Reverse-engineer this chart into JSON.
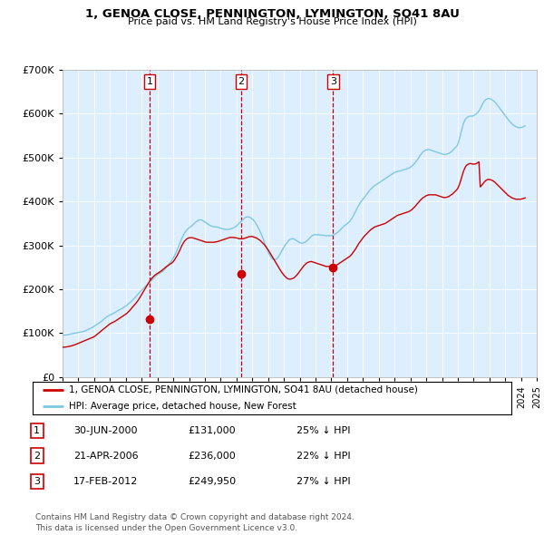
{
  "title": "1, GENOA CLOSE, PENNINGTON, LYMINGTON, SO41 8AU",
  "subtitle": "Price paid vs. HM Land Registry's House Price Index (HPI)",
  "hpi_label": "HPI: Average price, detached house, New Forest",
  "price_label": "1, GENOA CLOSE, PENNINGTON, LYMINGTON, SO41 8AU (detached house)",
  "hpi_color": "#7ec8e3",
  "price_color": "#cc0000",
  "vline_color": "#cc0000",
  "chart_bg_color": "#ddeeff",
  "background_color": "#ffffff",
  "grid_color": "#ffffff",
  "ylim": [
    0,
    700000
  ],
  "yticks": [
    0,
    100000,
    200000,
    300000,
    400000,
    500000,
    600000,
    700000
  ],
  "transactions": [
    {
      "num": 1,
      "date_label": "30-JUN-2000",
      "price_label": "£131,000",
      "pct_label": "25% ↓ HPI",
      "year": 2000.5,
      "price_val": 131000
    },
    {
      "num": 2,
      "date_label": "21-APR-2006",
      "price_label": "£236,000",
      "pct_label": "22% ↓ HPI",
      "year": 2006.3,
      "price_val": 236000
    },
    {
      "num": 3,
      "date_label": "17-FEB-2012",
      "price_label": "£249,950",
      "pct_label": "27% ↓ HPI",
      "year": 2012.1,
      "price_val": 249950
    }
  ],
  "footer": "Contains HM Land Registry data © Crown copyright and database right 2024.\nThis data is licensed under the Open Government Licence v3.0.",
  "hpi_data_x": [
    1995.0,
    1995.083,
    1995.167,
    1995.25,
    1995.333,
    1995.417,
    1995.5,
    1995.583,
    1995.667,
    1995.75,
    1995.833,
    1995.917,
    1996.0,
    1996.083,
    1996.167,
    1996.25,
    1996.333,
    1996.417,
    1996.5,
    1996.583,
    1996.667,
    1996.75,
    1996.833,
    1996.917,
    1997.0,
    1997.083,
    1997.167,
    1997.25,
    1997.333,
    1997.417,
    1997.5,
    1997.583,
    1997.667,
    1997.75,
    1997.833,
    1997.917,
    1998.0,
    1998.083,
    1998.167,
    1998.25,
    1998.333,
    1998.417,
    1998.5,
    1998.583,
    1998.667,
    1998.75,
    1998.833,
    1998.917,
    1999.0,
    1999.083,
    1999.167,
    1999.25,
    1999.333,
    1999.417,
    1999.5,
    1999.583,
    1999.667,
    1999.75,
    1999.833,
    1999.917,
    2000.0,
    2000.083,
    2000.167,
    2000.25,
    2000.333,
    2000.417,
    2000.5,
    2000.583,
    2000.667,
    2000.75,
    2000.833,
    2000.917,
    2001.0,
    2001.083,
    2001.167,
    2001.25,
    2001.333,
    2001.417,
    2001.5,
    2001.583,
    2001.667,
    2001.75,
    2001.833,
    2001.917,
    2002.0,
    2002.083,
    2002.167,
    2002.25,
    2002.333,
    2002.417,
    2002.5,
    2002.583,
    2002.667,
    2002.75,
    2002.833,
    2002.917,
    2003.0,
    2003.083,
    2003.167,
    2003.25,
    2003.333,
    2003.417,
    2003.5,
    2003.583,
    2003.667,
    2003.75,
    2003.833,
    2003.917,
    2004.0,
    2004.083,
    2004.167,
    2004.25,
    2004.333,
    2004.417,
    2004.5,
    2004.583,
    2004.667,
    2004.75,
    2004.833,
    2004.917,
    2005.0,
    2005.083,
    2005.167,
    2005.25,
    2005.333,
    2005.417,
    2005.5,
    2005.583,
    2005.667,
    2005.75,
    2005.833,
    2005.917,
    2006.0,
    2006.083,
    2006.167,
    2006.25,
    2006.333,
    2006.417,
    2006.5,
    2006.583,
    2006.667,
    2006.75,
    2006.833,
    2006.917,
    2007.0,
    2007.083,
    2007.167,
    2007.25,
    2007.333,
    2007.417,
    2007.5,
    2007.583,
    2007.667,
    2007.75,
    2007.833,
    2007.917,
    2008.0,
    2008.083,
    2008.167,
    2008.25,
    2008.333,
    2008.417,
    2008.5,
    2008.583,
    2008.667,
    2008.75,
    2008.833,
    2008.917,
    2009.0,
    2009.083,
    2009.167,
    2009.25,
    2009.333,
    2009.417,
    2009.5,
    2009.583,
    2009.667,
    2009.75,
    2009.833,
    2009.917,
    2010.0,
    2010.083,
    2010.167,
    2010.25,
    2010.333,
    2010.417,
    2010.5,
    2010.583,
    2010.667,
    2010.75,
    2010.833,
    2010.917,
    2011.0,
    2011.083,
    2011.167,
    2011.25,
    2011.333,
    2011.417,
    2011.5,
    2011.583,
    2011.667,
    2011.75,
    2011.833,
    2011.917,
    2012.0,
    2012.083,
    2012.167,
    2012.25,
    2012.333,
    2012.417,
    2012.5,
    2012.583,
    2012.667,
    2012.75,
    2012.833,
    2012.917,
    2013.0,
    2013.083,
    2013.167,
    2013.25,
    2013.333,
    2013.417,
    2013.5,
    2013.583,
    2013.667,
    2013.75,
    2013.833,
    2013.917,
    2014.0,
    2014.083,
    2014.167,
    2014.25,
    2014.333,
    2014.417,
    2014.5,
    2014.583,
    2014.667,
    2014.75,
    2014.833,
    2014.917,
    2015.0,
    2015.083,
    2015.167,
    2015.25,
    2015.333,
    2015.417,
    2015.5,
    2015.583,
    2015.667,
    2015.75,
    2015.833,
    2015.917,
    2016.0,
    2016.083,
    2016.167,
    2016.25,
    2016.333,
    2016.417,
    2016.5,
    2016.583,
    2016.667,
    2016.75,
    2016.833,
    2016.917,
    2017.0,
    2017.083,
    2017.167,
    2017.25,
    2017.333,
    2017.417,
    2017.5,
    2017.583,
    2017.667,
    2017.75,
    2017.833,
    2017.917,
    2018.0,
    2018.083,
    2018.167,
    2018.25,
    2018.333,
    2018.417,
    2018.5,
    2018.583,
    2018.667,
    2018.75,
    2018.833,
    2018.917,
    2019.0,
    2019.083,
    2019.167,
    2019.25,
    2019.333,
    2019.417,
    2019.5,
    2019.583,
    2019.667,
    2019.75,
    2019.833,
    2019.917,
    2020.0,
    2020.083,
    2020.167,
    2020.25,
    2020.333,
    2020.417,
    2020.5,
    2020.583,
    2020.667,
    2020.75,
    2020.833,
    2020.917,
    2021.0,
    2021.083,
    2021.167,
    2021.25,
    2021.333,
    2021.417,
    2021.5,
    2021.583,
    2021.667,
    2021.75,
    2021.833,
    2021.917,
    2022.0,
    2022.083,
    2022.167,
    2022.25,
    2022.333,
    2022.417,
    2022.5,
    2022.583,
    2022.667,
    2022.75,
    2022.833,
    2022.917,
    2023.0,
    2023.083,
    2023.167,
    2023.25,
    2023.333,
    2023.417,
    2023.5,
    2023.583,
    2023.667,
    2023.75,
    2023.833,
    2023.917,
    2024.0,
    2024.083,
    2024.167,
    2024.25
  ],
  "hpi_data_y": [
    96000,
    95500,
    95800,
    96200,
    96800,
    97500,
    98200,
    98900,
    99500,
    100000,
    100500,
    101000,
    101500,
    102000,
    102500,
    103200,
    104000,
    105000,
    106500,
    108000,
    109500,
    111000,
    112500,
    114000,
    116000,
    118000,
    120000,
    122000,
    124000,
    126000,
    128500,
    131000,
    133500,
    136000,
    138000,
    140000,
    141500,
    143000,
    144500,
    146000,
    147500,
    149500,
    151500,
    153000,
    154500,
    156000,
    158000,
    160000,
    162000,
    164500,
    167000,
    169500,
    172000,
    175000,
    178000,
    181000,
    184500,
    188000,
    191500,
    195000,
    198000,
    201000,
    204000,
    207000,
    210000,
    213000,
    216000,
    219000,
    222000,
    225000,
    228000,
    231000,
    233000,
    235000,
    237000,
    239000,
    241000,
    244000,
    247000,
    250000,
    254000,
    258000,
    262000,
    266000,
    271000,
    277000,
    283000,
    290000,
    297000,
    305000,
    312000,
    319000,
    325000,
    330000,
    334000,
    337000,
    340000,
    342000,
    344000,
    347000,
    350000,
    353000,
    355000,
    357000,
    358000,
    358000,
    357000,
    355000,
    353000,
    351000,
    349000,
    347000,
    345000,
    344000,
    343000,
    342000,
    342000,
    342000,
    341000,
    340000,
    339000,
    338000,
    337000,
    337000,
    336000,
    336000,
    336000,
    337000,
    338000,
    339000,
    340000,
    342000,
    344000,
    347000,
    350000,
    353000,
    356000,
    359000,
    362000,
    364000,
    365000,
    365000,
    364000,
    362000,
    360000,
    357000,
    353000,
    348000,
    343000,
    337000,
    331000,
    324000,
    316000,
    308000,
    300000,
    292000,
    285000,
    279000,
    274000,
    270000,
    268000,
    268000,
    268000,
    271000,
    275000,
    280000,
    285000,
    291000,
    296000,
    301000,
    305000,
    309000,
    312000,
    314000,
    315000,
    315000,
    314000,
    312000,
    310000,
    308000,
    306000,
    305000,
    305000,
    306000,
    307000,
    309000,
    312000,
    315000,
    318000,
    321000,
    323000,
    324000,
    324000,
    324000,
    324000,
    324000,
    323000,
    323000,
    323000,
    322000,
    322000,
    322000,
    322000,
    322000,
    322000,
    323000,
    324000,
    326000,
    328000,
    330000,
    333000,
    336000,
    339000,
    342000,
    345000,
    347000,
    349000,
    352000,
    355000,
    359000,
    364000,
    369000,
    375000,
    381000,
    387000,
    392000,
    397000,
    401000,
    405000,
    409000,
    413000,
    417000,
    421000,
    425000,
    428000,
    431000,
    434000,
    436000,
    438000,
    440000,
    442000,
    444000,
    446000,
    448000,
    450000,
    452000,
    454000,
    456000,
    458000,
    460000,
    462000,
    464000,
    466000,
    467000,
    468000,
    469000,
    469000,
    470000,
    471000,
    472000,
    473000,
    474000,
    475000,
    476000,
    478000,
    480000,
    483000,
    486000,
    490000,
    494000,
    498000,
    503000,
    507000,
    511000,
    514000,
    516000,
    517000,
    518000,
    518000,
    517000,
    516000,
    515000,
    514000,
    513000,
    512000,
    511000,
    510000,
    509000,
    508000,
    507000,
    507000,
    507000,
    508000,
    509000,
    511000,
    513000,
    516000,
    519000,
    522000,
    525000,
    530000,
    540000,
    552000,
    564000,
    575000,
    583000,
    588000,
    591000,
    593000,
    594000,
    594000,
    594000,
    595000,
    597000,
    599000,
    602000,
    606000,
    611000,
    617000,
    623000,
    628000,
    631000,
    633000,
    634000,
    634000,
    633000,
    631000,
    629000,
    626000,
    623000,
    619000,
    615000,
    611000,
    607000,
    603000,
    599000,
    595000,
    591000,
    587000,
    583000,
    580000,
    577000,
    574000,
    572000,
    570000,
    569000,
    568000,
    568000,
    568000,
    569000,
    570000,
    572000
  ],
  "price_data_x": [
    1995.0,
    1995.083,
    1995.167,
    1995.25,
    1995.333,
    1995.417,
    1995.5,
    1995.583,
    1995.667,
    1995.75,
    1995.833,
    1995.917,
    1996.0,
    1996.083,
    1996.167,
    1996.25,
    1996.333,
    1996.417,
    1996.5,
    1996.583,
    1996.667,
    1996.75,
    1996.833,
    1996.917,
    1997.0,
    1997.083,
    1997.167,
    1997.25,
    1997.333,
    1997.417,
    1997.5,
    1997.583,
    1997.667,
    1997.75,
    1997.833,
    1997.917,
    1998.0,
    1998.083,
    1998.167,
    1998.25,
    1998.333,
    1998.417,
    1998.5,
    1998.583,
    1998.667,
    1998.75,
    1998.833,
    1998.917,
    1999.0,
    1999.083,
    1999.167,
    1999.25,
    1999.333,
    1999.417,
    1999.5,
    1999.583,
    1999.667,
    1999.75,
    1999.833,
    1999.917,
    2000.0,
    2000.083,
    2000.167,
    2000.25,
    2000.333,
    2000.417,
    2000.5,
    2000.583,
    2000.667,
    2000.75,
    2000.833,
    2000.917,
    2001.0,
    2001.083,
    2001.167,
    2001.25,
    2001.333,
    2001.417,
    2001.5,
    2001.583,
    2001.667,
    2001.75,
    2001.833,
    2001.917,
    2002.0,
    2002.083,
    2002.167,
    2002.25,
    2002.333,
    2002.417,
    2002.5,
    2002.583,
    2002.667,
    2002.75,
    2002.833,
    2002.917,
    2003.0,
    2003.083,
    2003.167,
    2003.25,
    2003.333,
    2003.417,
    2003.5,
    2003.583,
    2003.667,
    2003.75,
    2003.833,
    2003.917,
    2004.0,
    2004.083,
    2004.167,
    2004.25,
    2004.333,
    2004.417,
    2004.5,
    2004.583,
    2004.667,
    2004.75,
    2004.833,
    2004.917,
    2005.0,
    2005.083,
    2005.167,
    2005.25,
    2005.333,
    2005.417,
    2005.5,
    2005.583,
    2005.667,
    2005.75,
    2005.833,
    2005.917,
    2006.0,
    2006.083,
    2006.167,
    2006.25,
    2006.333,
    2006.417,
    2006.5,
    2006.583,
    2006.667,
    2006.75,
    2006.833,
    2006.917,
    2007.0,
    2007.083,
    2007.167,
    2007.25,
    2007.333,
    2007.417,
    2007.5,
    2007.583,
    2007.667,
    2007.75,
    2007.833,
    2007.917,
    2008.0,
    2008.083,
    2008.167,
    2008.25,
    2008.333,
    2008.417,
    2008.5,
    2008.583,
    2008.667,
    2008.75,
    2008.833,
    2008.917,
    2009.0,
    2009.083,
    2009.167,
    2009.25,
    2009.333,
    2009.417,
    2009.5,
    2009.583,
    2009.667,
    2009.75,
    2009.833,
    2009.917,
    2010.0,
    2010.083,
    2010.167,
    2010.25,
    2010.333,
    2010.417,
    2010.5,
    2010.583,
    2010.667,
    2010.75,
    2010.833,
    2010.917,
    2011.0,
    2011.083,
    2011.167,
    2011.25,
    2011.333,
    2011.417,
    2011.5,
    2011.583,
    2011.667,
    2011.75,
    2011.833,
    2011.917,
    2012.0,
    2012.083,
    2012.167,
    2012.25,
    2012.333,
    2012.417,
    2012.5,
    2012.583,
    2012.667,
    2012.75,
    2012.833,
    2012.917,
    2013.0,
    2013.083,
    2013.167,
    2013.25,
    2013.333,
    2013.417,
    2013.5,
    2013.583,
    2013.667,
    2013.75,
    2013.833,
    2013.917,
    2014.0,
    2014.083,
    2014.167,
    2014.25,
    2014.333,
    2014.417,
    2014.5,
    2014.583,
    2014.667,
    2014.75,
    2014.833,
    2014.917,
    2015.0,
    2015.083,
    2015.167,
    2015.25,
    2015.333,
    2015.417,
    2015.5,
    2015.583,
    2015.667,
    2015.75,
    2015.833,
    2015.917,
    2016.0,
    2016.083,
    2016.167,
    2016.25,
    2016.333,
    2016.417,
    2016.5,
    2016.583,
    2016.667,
    2016.75,
    2016.833,
    2016.917,
    2017.0,
    2017.083,
    2017.167,
    2017.25,
    2017.333,
    2017.417,
    2017.5,
    2017.583,
    2017.667,
    2017.75,
    2017.833,
    2017.917,
    2018.0,
    2018.083,
    2018.167,
    2018.25,
    2018.333,
    2018.417,
    2018.5,
    2018.583,
    2018.667,
    2018.75,
    2018.833,
    2018.917,
    2019.0,
    2019.083,
    2019.167,
    2019.25,
    2019.333,
    2019.417,
    2019.5,
    2019.583,
    2019.667,
    2019.75,
    2019.833,
    2019.917,
    2020.0,
    2020.083,
    2020.167,
    2020.25,
    2020.333,
    2020.417,
    2020.5,
    2020.583,
    2020.667,
    2020.75,
    2020.833,
    2020.917,
    2021.0,
    2021.083,
    2021.167,
    2021.25,
    2021.333,
    2021.417,
    2021.5,
    2021.583,
    2021.667,
    2021.75,
    2021.833,
    2021.917,
    2022.0,
    2022.083,
    2022.167,
    2022.25,
    2022.333,
    2022.417,
    2022.5,
    2022.583,
    2022.667,
    2022.75,
    2022.833,
    2022.917,
    2023.0,
    2023.083,
    2023.167,
    2023.25,
    2023.333,
    2023.417,
    2023.5,
    2023.583,
    2023.667,
    2023.75,
    2023.833,
    2023.917,
    2024.0,
    2024.083,
    2024.167,
    2024.25
  ],
  "price_data_y": [
    68000,
    68200,
    68500,
    68900,
    69400,
    70000,
    70700,
    71500,
    72400,
    73400,
    74500,
    75700,
    77000,
    78300,
    79600,
    80900,
    82200,
    83400,
    84600,
    85800,
    87000,
    88200,
    89500,
    90800,
    92500,
    94500,
    97000,
    99500,
    102000,
    104500,
    107000,
    109500,
    112000,
    114500,
    117000,
    119500,
    121500,
    123000,
    124500,
    126000,
    127500,
    129500,
    131500,
    133500,
    135500,
    137500,
    139500,
    141500,
    143500,
    146000,
    149000,
    152000,
    155500,
    159000,
    162500,
    166000,
    169500,
    173500,
    178000,
    183000,
    188000,
    193000,
    198000,
    203000,
    208000,
    213000,
    218000,
    222000,
    226000,
    229000,
    232000,
    234000,
    236000,
    238000,
    240000,
    242000,
    244500,
    247000,
    249500,
    252000,
    254000,
    256000,
    258000,
    260000,
    263000,
    267000,
    272000,
    277000,
    283000,
    289000,
    296000,
    302000,
    307000,
    311000,
    314000,
    316000,
    317000,
    317500,
    317500,
    317000,
    316000,
    315000,
    314000,
    313000,
    312000,
    311000,
    310000,
    309000,
    308000,
    307000,
    307000,
    307000,
    307000,
    307000,
    307000,
    307000,
    308000,
    308000,
    309000,
    310000,
    311000,
    312000,
    313000,
    314000,
    315000,
    316000,
    317000,
    318000,
    318000,
    318000,
    318000,
    317000,
    317000,
    316000,
    315000,
    315000,
    315000,
    315000,
    316000,
    317000,
    318000,
    319000,
    320000,
    320000,
    320000,
    319000,
    318000,
    317000,
    315000,
    313000,
    311000,
    308000,
    305000,
    302000,
    298000,
    294000,
    290000,
    285000,
    280000,
    275000,
    270000,
    265000,
    260000,
    255000,
    250000,
    245000,
    240000,
    236000,
    232000,
    229000,
    226000,
    224000,
    223000,
    223000,
    224000,
    225000,
    227000,
    230000,
    233000,
    237000,
    241000,
    245000,
    249000,
    253000,
    256000,
    259000,
    261000,
    262000,
    263000,
    263000,
    262000,
    261000,
    260000,
    259000,
    258000,
    257000,
    256000,
    255000,
    254000,
    253000,
    252000,
    252000,
    252000,
    252000,
    252000,
    252000,
    253000,
    254000,
    255000,
    257000,
    259000,
    261000,
    263000,
    265000,
    267000,
    269000,
    271000,
    273000,
    275000,
    278000,
    282000,
    286000,
    290000,
    295000,
    300000,
    305000,
    309000,
    313000,
    317000,
    321000,
    324000,
    327000,
    330000,
    333000,
    336000,
    338000,
    340000,
    342000,
    343000,
    344000,
    345000,
    346000,
    347000,
    348000,
    349000,
    350000,
    352000,
    354000,
    356000,
    358000,
    360000,
    362000,
    364000,
    366000,
    368000,
    369000,
    370000,
    371000,
    372000,
    373000,
    374000,
    375000,
    376000,
    377000,
    379000,
    381000,
    384000,
    387000,
    390000,
    394000,
    397000,
    401000,
    404000,
    407000,
    409000,
    411000,
    413000,
    414000,
    415000,
    415000,
    415000,
    415000,
    415000,
    415000,
    414000,
    413000,
    412000,
    411000,
    410000,
    409000,
    409000,
    409000,
    410000,
    411000,
    413000,
    415000,
    417000,
    420000,
    423000,
    426000,
    430000,
    437000,
    446000,
    456000,
    466000,
    474000,
    480000,
    483000,
    485000,
    486000,
    486000,
    485000,
    485000,
    485000,
    486000,
    488000,
    490000,
    433000,
    436000,
    440000,
    444000,
    447000,
    449000,
    450000,
    450000,
    449000,
    448000,
    446000,
    444000,
    441000,
    438000,
    435000,
    432000,
    429000,
    426000,
    423000,
    420000,
    417000,
    414000,
    412000,
    410000,
    408000,
    407000,
    406000,
    405000,
    405000,
    405000,
    405000,
    405000,
    406000,
    407000,
    408000
  ]
}
